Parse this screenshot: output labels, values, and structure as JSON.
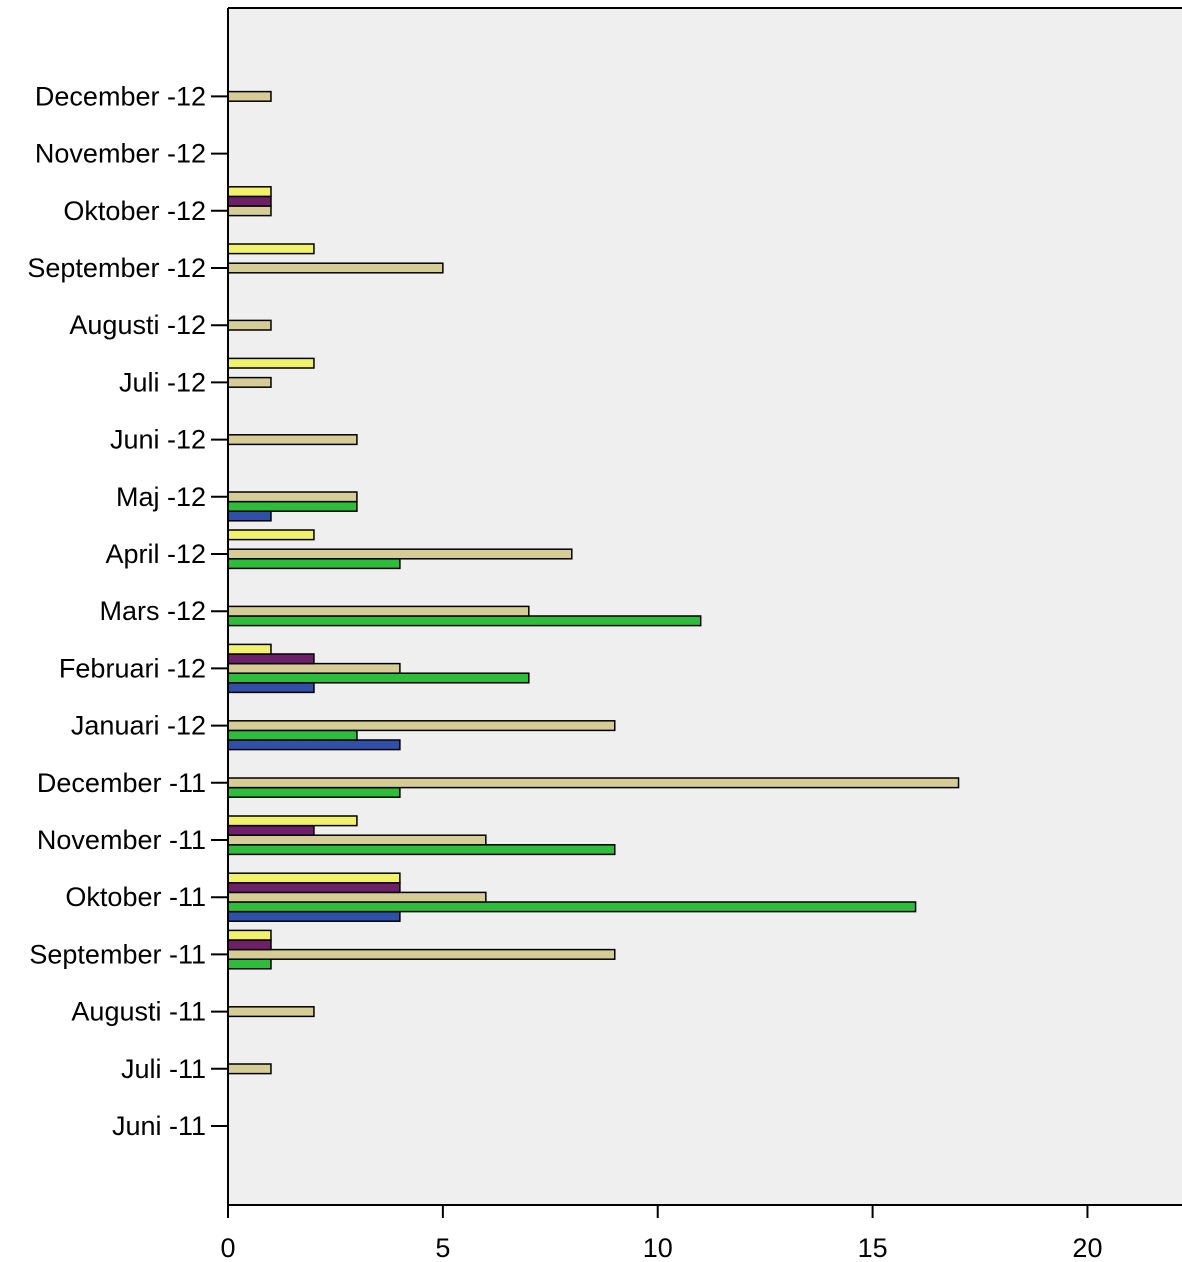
{
  "chart_data": {
    "type": "bar",
    "orientation": "horizontal",
    "categories": [
      "Juni -11",
      "Juli -11",
      "Augusti -11",
      "September -11",
      "Oktober -11",
      "November -11",
      "December -11",
      "Januari -12",
      "Februari -12",
      "Mars -12",
      "April -12",
      "Maj -12",
      "Juni -12",
      "Juli -12",
      "Augusti -12",
      "September -12",
      "Oktober -12",
      "November -12",
      "December -12"
    ],
    "series": [
      {
        "color": "#2F4FA8",
        "values": [
          0,
          0,
          0,
          0,
          4,
          0,
          0,
          4,
          2,
          0,
          0,
          1,
          0,
          0,
          0,
          0,
          0,
          0,
          0
        ]
      },
      {
        "color": "#2DBD3A",
        "values": [
          0,
          0,
          0,
          1,
          16,
          9,
          4,
          3,
          7,
          11,
          4,
          3,
          0,
          0,
          0,
          0,
          0,
          0,
          0
        ]
      },
      {
        "color": "#D6CC96",
        "values": [
          0,
          1,
          2,
          9,
          6,
          6,
          17,
          9,
          4,
          7,
          8,
          3,
          3,
          1,
          1,
          5,
          1,
          0,
          1
        ]
      },
      {
        "color": "#6E1F6A",
        "values": [
          0,
          0,
          0,
          1,
          4,
          2,
          0,
          0,
          2,
          0,
          0,
          0,
          0,
          0,
          0,
          0,
          1,
          0,
          0
        ]
      },
      {
        "color": "#F2F26A",
        "values": [
          0,
          0,
          0,
          1,
          4,
          3,
          0,
          0,
          1,
          0,
          2,
          0,
          0,
          2,
          0,
          2,
          1,
          0,
          0
        ]
      }
    ],
    "xticks": [
      0,
      5,
      10,
      15,
      20
    ],
    "xlim": [
      0,
      22.2
    ],
    "grid": false,
    "plot_background": "#EFEFEF",
    "title": "",
    "xlabel": "",
    "ylabel": ""
  }
}
